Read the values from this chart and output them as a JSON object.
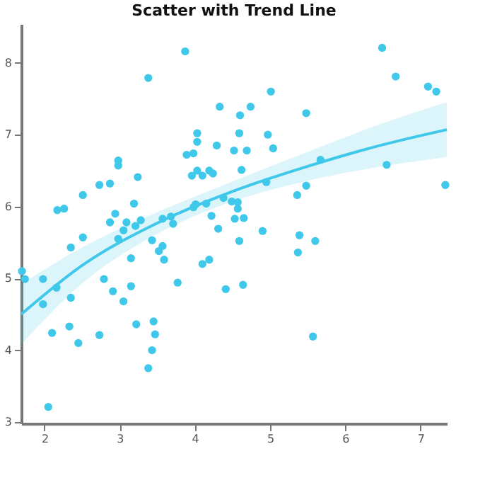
{
  "chart_data": {
    "type": "scatter",
    "title": "Scatter with Trend Line",
    "xlim": [
      1.69,
      7.35
    ],
    "ylim": [
      2.98,
      8.54
    ],
    "xticks": [
      2,
      3,
      4,
      5,
      6,
      7
    ],
    "yticks": [
      3,
      4,
      5,
      6,
      7,
      8
    ],
    "grid": false,
    "series": [
      {
        "marker": "circle",
        "color": "#3fc8ea",
        "x": [
          1.7,
          1.74,
          1.98,
          1.98,
          2.16,
          2.1,
          2.05,
          2.17,
          2.26,
          2.35,
          2.35,
          2.33,
          2.45,
          2.51,
          2.51,
          2.73,
          2.73,
          2.79,
          2.87,
          2.87,
          2.91,
          2.94,
          2.98,
          2.98,
          2.98,
          3.05,
          3.09,
          3.05,
          3.15,
          3.15,
          3.19,
          3.24,
          3.21,
          3.28,
          3.22,
          3.38,
          3.43,
          3.38,
          3.43,
          3.45,
          3.47,
          3.57,
          3.52,
          3.57,
          3.59,
          3.68,
          3.71,
          3.77,
          3.87,
          3.89,
          3.98,
          4.03,
          4.03,
          3.96,
          3.98,
          4.01,
          4.03,
          4.1,
          4.19,
          4.1,
          4.15,
          4.19,
          4.24,
          4.29,
          4.33,
          4.38,
          4.22,
          4.31,
          4.41,
          4.49,
          6.49,
          6.67,
          7.1,
          7.21,
          5.01,
          4.74,
          4.6,
          4.59,
          5.48,
          4.97,
          5.04,
          4.52,
          4.69,
          4.62,
          4.95,
          5.67,
          6.55,
          5.48,
          4.57,
          4.57,
          4.53,
          4.65,
          5.36,
          7.33,
          4.9,
          5.39,
          4.59,
          5.6,
          5.37,
          4.64,
          5.57
        ],
        "values": [
          5.1,
          4.99,
          4.99,
          4.64,
          4.87,
          4.24,
          3.21,
          5.95,
          5.97,
          5.43,
          4.73,
          4.33,
          4.1,
          5.57,
          6.16,
          6.3,
          4.21,
          4.99,
          6.32,
          5.78,
          4.82,
          5.9,
          6.64,
          6.57,
          5.55,
          5.67,
          5.78,
          4.68,
          4.89,
          5.28,
          6.04,
          6.41,
          5.73,
          5.81,
          4.36,
          7.79,
          5.53,
          3.75,
          4.0,
          4.4,
          4.22,
          5.83,
          5.38,
          5.45,
          5.26,
          5.86,
          5.76,
          4.94,
          8.16,
          6.72,
          6.74,
          6.9,
          7.02,
          6.43,
          5.99,
          6.03,
          6.5,
          5.2,
          5.26,
          6.43,
          6.04,
          6.5,
          6.46,
          6.85,
          7.39,
          6.12,
          5.87,
          5.69,
          4.85,
          6.07,
          8.21,
          7.81,
          7.67,
          7.6,
          7.6,
          7.39,
          7.27,
          7.02,
          7.3,
          7.0,
          6.81,
          6.78,
          6.78,
          6.51,
          6.34,
          6.65,
          6.58,
          6.29,
          6.06,
          5.97,
          5.83,
          5.84,
          6.16,
          6.3,
          5.66,
          5.6,
          5.52,
          5.52,
          5.36,
          4.91,
          4.19
        ]
      },
      {
        "type": "line",
        "color": "#3fc8ea",
        "x": [
          1.69,
          2.5,
          3.5,
          4.5,
          5.5,
          6.5,
          7.35
        ],
        "values": [
          4.5,
          5.18,
          5.77,
          6.21,
          6.56,
          6.86,
          7.07
        ],
        "lower": [
          4.08,
          4.93,
          5.62,
          6.07,
          6.36,
          6.56,
          6.69
        ],
        "upper": [
          4.92,
          5.43,
          5.92,
          6.35,
          6.76,
          7.16,
          7.45
        ]
      }
    ]
  }
}
